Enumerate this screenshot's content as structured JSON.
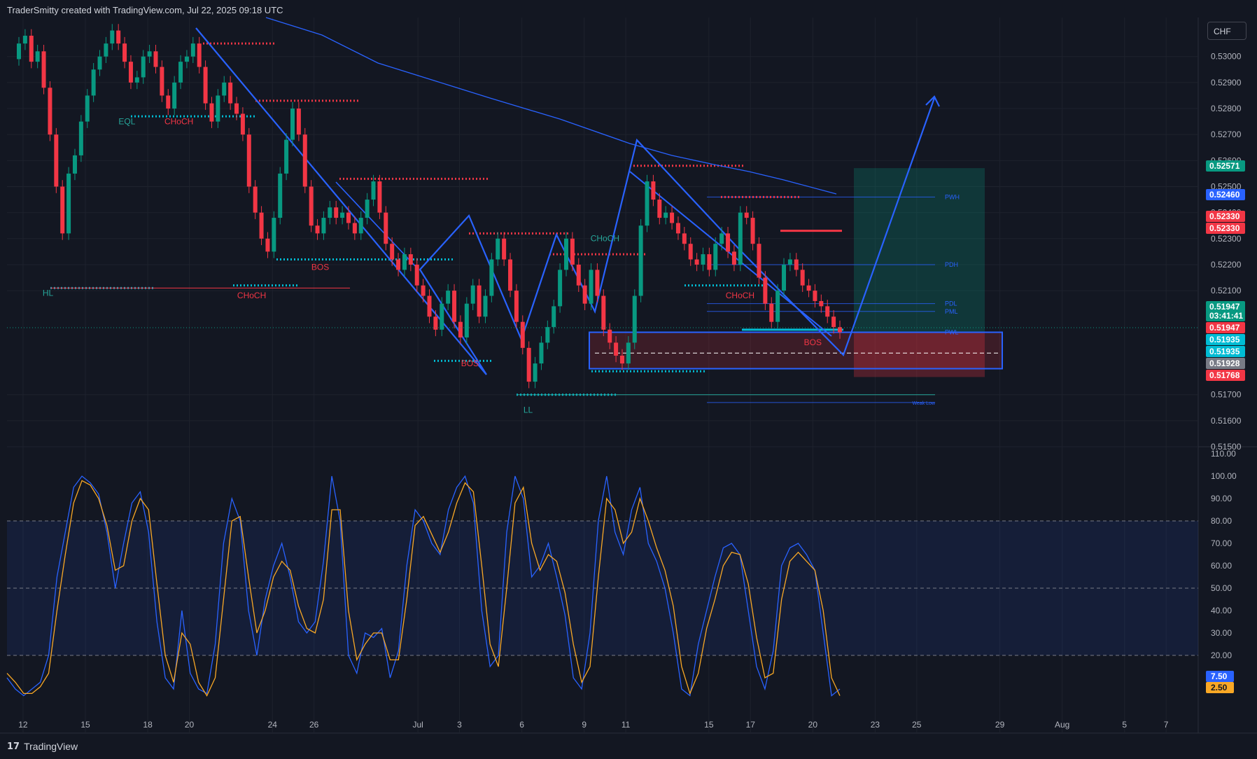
{
  "header": {
    "caption": "TraderSmitty created with TradingView.com, Jul 22, 2025 09:18 UTC"
  },
  "footer": {
    "brand": "TradingView",
    "icon": "tradingview-logo-icon"
  },
  "currency": "CHF",
  "colors": {
    "background": "#131722",
    "bull": "#26a69a",
    "bear": "#f23645",
    "blue": "#2962ff",
    "cyan": "#00bcd4",
    "orange": "#f9a825",
    "text": "#d1d4dc"
  },
  "chart_data": [
    {
      "type": "candlestick",
      "ylim": [
        0.515,
        0.5315
      ],
      "yticks": [
        "0.53000",
        "0.52900",
        "0.52800",
        "0.52700",
        "0.52600",
        "0.52500",
        "0.52400",
        "0.52300",
        "0.52200",
        "0.52100",
        "0.51700",
        "0.51600",
        "0.51500"
      ],
      "xticks": [
        {
          "label": "12",
          "day": 12
        },
        {
          "label": "15",
          "day": 15
        },
        {
          "label": "18",
          "day": 18
        },
        {
          "label": "20",
          "day": 20
        },
        {
          "label": "24",
          "day": 24
        },
        {
          "label": "26",
          "day": 26
        },
        {
          "label": "Jul",
          "day": 31
        },
        {
          "label": "3",
          "day": 33
        },
        {
          "label": "6",
          "day": 36
        },
        {
          "label": "9",
          "day": 39
        },
        {
          "label": "11",
          "day": 41
        },
        {
          "label": "15",
          "day": 45
        },
        {
          "label": "17",
          "day": 47
        },
        {
          "label": "20",
          "day": 50
        },
        {
          "label": "23",
          "day": 53
        },
        {
          "label": "25",
          "day": 55
        },
        {
          "label": "29",
          "day": 59
        },
        {
          "label": "Aug",
          "day": 62
        },
        {
          "label": "5",
          "day": 65
        },
        {
          "label": "7",
          "day": 67
        }
      ],
      "series": [
        {
          "values": [
            0.5305,
            0.5308,
            0.5298,
            0.5302,
            0.5288,
            0.527,
            0.525,
            0.5232,
            0.5255,
            0.5262,
            0.5275,
            0.5285,
            0.5295,
            0.53,
            0.5305,
            0.531,
            0.5305,
            0.5298,
            0.529,
            0.5292,
            0.53,
            0.5302,
            0.5296,
            0.5285,
            0.528,
            0.529,
            0.5298,
            0.53,
            0.5305,
            0.5296,
            0.5282,
            0.5275,
            0.5285,
            0.529,
            0.5282,
            0.5278,
            0.527,
            0.525,
            0.524,
            0.523,
            0.5225,
            0.5238,
            0.5255,
            0.5268,
            0.528,
            0.527,
            0.525,
            0.5235,
            0.5232,
            0.5238,
            0.5242,
            0.5238,
            0.524,
            0.5236,
            0.5232,
            0.5238,
            0.5245,
            0.5252,
            0.524,
            0.5228,
            0.5222,
            0.5218,
            0.5224,
            0.522,
            0.5212,
            0.5208,
            0.52,
            0.5195,
            0.5205,
            0.521,
            0.5198,
            0.5192,
            0.5205,
            0.5212,
            0.52,
            0.5208,
            0.5222,
            0.523,
            0.5222,
            0.521,
            0.5198,
            0.5188,
            0.5175,
            0.5182,
            0.519,
            0.5196,
            0.5204,
            0.5218,
            0.523,
            0.522,
            0.5212,
            0.5205,
            0.5218,
            0.5208,
            0.5195,
            0.519,
            0.5185,
            0.5182,
            0.519,
            0.5208,
            0.5235,
            0.5252,
            0.5245,
            0.5238,
            0.524,
            0.5236,
            0.5232,
            0.5228,
            0.5222,
            0.522,
            0.5224,
            0.5218,
            0.5228,
            0.5232,
            0.5225,
            0.522,
            0.524,
            0.5238,
            0.5228,
            0.5215,
            0.5205,
            0.5198,
            0.521,
            0.522,
            0.5222,
            0.5218,
            0.5212,
            0.521,
            0.5206,
            0.5204,
            0.52,
            0.5196,
            0.5194
          ]
        }
      ],
      "annotations": [
        {
          "text": "EQL",
          "color": "#26a69a",
          "price": 0.5274,
          "day": 17
        },
        {
          "text": "CHoCH",
          "color": "#f23645",
          "price": 0.5274,
          "day": 19.5
        },
        {
          "text": "HL",
          "color": "#26a69a",
          "price": 0.5208,
          "day": 13.2
        },
        {
          "text": "CHoCH",
          "color": "#f23645",
          "price": 0.5207,
          "day": 23
        },
        {
          "text": "BOS",
          "color": "#f23645",
          "price": 0.5218,
          "day": 26.3
        },
        {
          "text": "CHoCH",
          "color": "#26a69a",
          "price": 0.5229,
          "day": 40
        },
        {
          "text": "BOS",
          "color": "#f23645",
          "price": 0.5181,
          "day": 33.5
        },
        {
          "text": "LL",
          "color": "#26a69a",
          "price": 0.5163,
          "day": 36.3
        },
        {
          "text": "CHoCH",
          "color": "#f23645",
          "price": 0.5207,
          "day": 46.5
        },
        {
          "text": "BOS",
          "color": "#f23645",
          "price": 0.5189,
          "day": 50
        }
      ],
      "levels": [
        {
          "text": "PWH",
          "price": 0.5246
        },
        {
          "text": "PDH",
          "price": 0.522
        },
        {
          "text": "PDL",
          "price": 0.5205
        },
        {
          "text": "PML",
          "price": 0.5202
        },
        {
          "text": "PWL",
          "price": 0.5194
        },
        {
          "text": "Weak Low",
          "price": 0.5167
        }
      ],
      "price_labels": [
        {
          "text": "0.52571",
          "color": "#089981"
        },
        {
          "text": "0.52460",
          "color": "#2962ff"
        },
        {
          "text": "0.52330",
          "color": "#f23645"
        },
        {
          "text": "0.52330",
          "color": "#f23645"
        },
        {
          "text": "0.51947",
          "color": "#089981"
        },
        {
          "text": "03:41:41",
          "color": "#089981"
        },
        {
          "text": "0.51947",
          "color": "#f23645"
        },
        {
          "text": "0.51935",
          "color": "#00bcd4"
        },
        {
          "text": "0.51935",
          "color": "#00bcd4"
        },
        {
          "text": "0.51928",
          "color": "#787b86"
        },
        {
          "text": "0.51768",
          "color": "#f23645"
        }
      ]
    },
    {
      "type": "line",
      "ylim": [
        0,
        110
      ],
      "yticks": [
        "110.00",
        "100.00",
        "90.00",
        "80.00",
        "70.00",
        "60.00",
        "50.00",
        "40.00",
        "30.00",
        "20.00"
      ],
      "bands": [
        20,
        50,
        80
      ],
      "series": [
        {
          "color": "#2962ff",
          "values": [
            10,
            5,
            2,
            5,
            8,
            20,
            55,
            75,
            95,
            100,
            97,
            92,
            75,
            50,
            70,
            88,
            93,
            75,
            35,
            10,
            5,
            40,
            12,
            5,
            3,
            25,
            70,
            90,
            80,
            40,
            20,
            45,
            60,
            70,
            55,
            35,
            30,
            35,
            62,
            100,
            80,
            20,
            12,
            30,
            28,
            32,
            10,
            22,
            60,
            85,
            80,
            70,
            65,
            85,
            95,
            100,
            88,
            40,
            15,
            20,
            75,
            100,
            90,
            55,
            60,
            70,
            55,
            38,
            10,
            5,
            30,
            80,
            100,
            75,
            65,
            85,
            95,
            70,
            62,
            50,
            30,
            5,
            2,
            25,
            40,
            55,
            68,
            70,
            65,
            40,
            15,
            5,
            22,
            60,
            68,
            70,
            65,
            58,
            30,
            2,
            5
          ]
        },
        {
          "color": "#f9a825",
          "values": [
            12,
            8,
            3,
            3,
            6,
            12,
            40,
            65,
            88,
            98,
            96,
            90,
            78,
            58,
            60,
            80,
            90,
            85,
            52,
            20,
            8,
            30,
            25,
            8,
            2,
            10,
            45,
            80,
            82,
            55,
            30,
            40,
            55,
            62,
            58,
            42,
            32,
            30,
            45,
            85,
            85,
            40,
            18,
            25,
            30,
            30,
            18,
            18,
            45,
            78,
            82,
            74,
            66,
            75,
            88,
            97,
            93,
            60,
            25,
            15,
            50,
            88,
            95,
            70,
            58,
            65,
            62,
            48,
            25,
            8,
            15,
            55,
            90,
            85,
            70,
            75,
            90,
            80,
            68,
            58,
            42,
            15,
            3,
            12,
            32,
            45,
            60,
            66,
            65,
            52,
            28,
            10,
            12,
            45,
            62,
            66,
            62,
            58,
            40,
            10,
            2
          ]
        }
      ],
      "price_labels": [
        {
          "text": "7.50",
          "color": "#2962ff"
        },
        {
          "text": "2.50",
          "color": "#f9a825"
        }
      ]
    }
  ]
}
